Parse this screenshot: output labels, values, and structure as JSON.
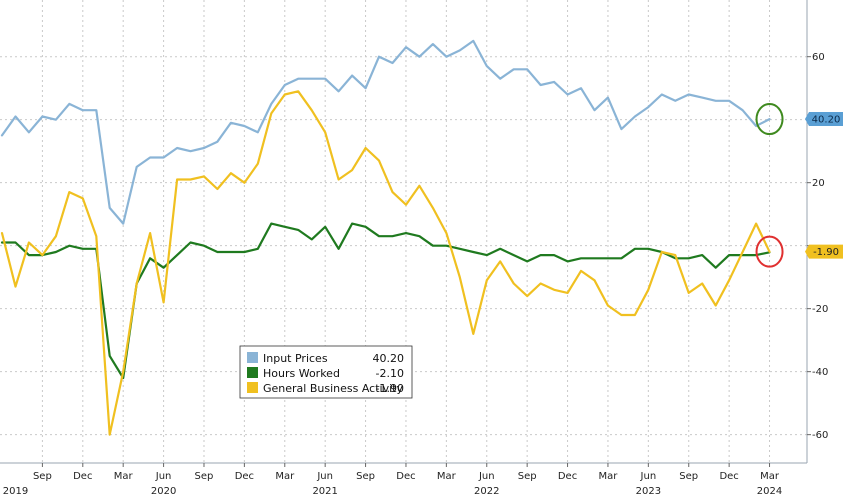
{
  "chart_data": {
    "type": "line",
    "x_start": "2019-06",
    "x_end": "2024-04",
    "x_ticks": [
      {
        "date": "2019-09",
        "label": "Sep"
      },
      {
        "date": "2019-12",
        "label": "Dec"
      },
      {
        "date": "2020-03",
        "label": "Mar"
      },
      {
        "date": "2020-06",
        "label": "Jun"
      },
      {
        "date": "2020-09",
        "label": "Sep"
      },
      {
        "date": "2020-12",
        "label": "Dec"
      },
      {
        "date": "2021-03",
        "label": "Mar"
      },
      {
        "date": "2021-06",
        "label": "Jun"
      },
      {
        "date": "2021-09",
        "label": "Sep"
      },
      {
        "date": "2021-12",
        "label": "Dec"
      },
      {
        "date": "2022-03",
        "label": "Mar"
      },
      {
        "date": "2022-06",
        "label": "Jun"
      },
      {
        "date": "2022-09",
        "label": "Sep"
      },
      {
        "date": "2022-12",
        "label": "Dec"
      },
      {
        "date": "2023-03",
        "label": "Mar"
      },
      {
        "date": "2023-06",
        "label": "Jun"
      },
      {
        "date": "2023-09",
        "label": "Sep"
      },
      {
        "date": "2023-12",
        "label": "Dec"
      },
      {
        "date": "2024-03",
        "label": "Mar"
      }
    ],
    "year_labels": [
      {
        "date": "2019-07",
        "label": "2019"
      },
      {
        "date": "2020-06",
        "label": "2020"
      },
      {
        "date": "2021-06",
        "label": "2021"
      },
      {
        "date": "2022-06",
        "label": "2022"
      },
      {
        "date": "2023-06",
        "label": "2023"
      },
      {
        "date": "2024-03",
        "label": "2024"
      }
    ],
    "ylim": [
      -69,
      78
    ],
    "y_ticks": [
      60,
      40,
      20,
      0,
      -20,
      -40,
      -60
    ],
    "y_tick_labels": [
      "60",
      "",
      "20",
      "",
      "-20",
      "-40",
      "-60"
    ],
    "grid": true,
    "legend_position": "bottom-center",
    "series": [
      {
        "name": "Input Prices",
        "color": "#8ab4d6",
        "last_value": "40.20",
        "last_label": "40.20",
        "label_bg": "#5a9fd4",
        "label_text_color": "#0b2a4a",
        "circle_color": "#3f8a1f",
        "points": [
          [
            "2019-06",
            35
          ],
          [
            "2019-07",
            41
          ],
          [
            "2019-08",
            36
          ],
          [
            "2019-09",
            41
          ],
          [
            "2019-10",
            40
          ],
          [
            "2019-11",
            45
          ],
          [
            "2019-12",
            43
          ],
          [
            "2020-01",
            43
          ],
          [
            "2020-02",
            12
          ],
          [
            "2020-03",
            7
          ],
          [
            "2020-04",
            25
          ],
          [
            "2020-05",
            28
          ],
          [
            "2020-06",
            28
          ],
          [
            "2020-07",
            31
          ],
          [
            "2020-08",
            30
          ],
          [
            "2020-09",
            31
          ],
          [
            "2020-10",
            33
          ],
          [
            "2020-11",
            39
          ],
          [
            "2020-12",
            38
          ],
          [
            "2021-01",
            36
          ],
          [
            "2021-02",
            45
          ],
          [
            "2021-03",
            51
          ],
          [
            "2021-04",
            53
          ],
          [
            "2021-05",
            53
          ],
          [
            "2021-06",
            53
          ],
          [
            "2021-07",
            49
          ],
          [
            "2021-08",
            54
          ],
          [
            "2021-09",
            50
          ],
          [
            "2021-10",
            60
          ],
          [
            "2021-11",
            58
          ],
          [
            "2021-12",
            63
          ],
          [
            "2022-01",
            60
          ],
          [
            "2022-02",
            64
          ],
          [
            "2022-03",
            60
          ],
          [
            "2022-04",
            62
          ],
          [
            "2022-05",
            65
          ],
          [
            "2022-06",
            57
          ],
          [
            "2022-07",
            53
          ],
          [
            "2022-08",
            56
          ],
          [
            "2022-09",
            56
          ],
          [
            "2022-10",
            51
          ],
          [
            "2022-11",
            52
          ],
          [
            "2022-12",
            48
          ],
          [
            "2023-01",
            50
          ],
          [
            "2023-02",
            43
          ],
          [
            "2023-03",
            47
          ],
          [
            "2023-04",
            37
          ],
          [
            "2023-05",
            41
          ],
          [
            "2023-06",
            44
          ],
          [
            "2023-07",
            48
          ],
          [
            "2023-08",
            46
          ],
          [
            "2023-09",
            48
          ],
          [
            "2023-10",
            47
          ],
          [
            "2023-11",
            46
          ],
          [
            "2023-12",
            46
          ],
          [
            "2024-01",
            43
          ],
          [
            "2024-02",
            38
          ],
          [
            "2024-03",
            40.2
          ]
        ]
      },
      {
        "name": "Hours Worked",
        "color": "#1f7a1f",
        "last_value": "-2.10",
        "points": [
          [
            "2019-06",
            1
          ],
          [
            "2019-07",
            1
          ],
          [
            "2019-08",
            -3
          ],
          [
            "2019-09",
            -3
          ],
          [
            "2019-10",
            -2
          ],
          [
            "2019-11",
            0
          ],
          [
            "2019-12",
            -1
          ],
          [
            "2020-01",
            -1
          ],
          [
            "2020-02",
            -35
          ],
          [
            "2020-03",
            -42
          ],
          [
            "2020-04",
            -12
          ],
          [
            "2020-05",
            -4
          ],
          [
            "2020-06",
            -7
          ],
          [
            "2020-07",
            -3
          ],
          [
            "2020-08",
            1
          ],
          [
            "2020-09",
            0
          ],
          [
            "2020-10",
            -2
          ],
          [
            "2020-11",
            -2
          ],
          [
            "2020-12",
            -2
          ],
          [
            "2021-01",
            -1
          ],
          [
            "2021-02",
            7
          ],
          [
            "2021-03",
            6
          ],
          [
            "2021-04",
            5
          ],
          [
            "2021-05",
            2
          ],
          [
            "2021-06",
            6
          ],
          [
            "2021-07",
            -1
          ],
          [
            "2021-08",
            7
          ],
          [
            "2021-09",
            6
          ],
          [
            "2021-10",
            3
          ],
          [
            "2021-11",
            3
          ],
          [
            "2021-12",
            4
          ],
          [
            "2022-01",
            3
          ],
          [
            "2022-02",
            0
          ],
          [
            "2022-03",
            0
          ],
          [
            "2022-04",
            -1
          ],
          [
            "2022-05",
            -2
          ],
          [
            "2022-06",
            -3
          ],
          [
            "2022-07",
            -1
          ],
          [
            "2022-08",
            -3
          ],
          [
            "2022-09",
            -5
          ],
          [
            "2022-10",
            -3
          ],
          [
            "2022-11",
            -3
          ],
          [
            "2022-12",
            -5
          ],
          [
            "2023-01",
            -4
          ],
          [
            "2023-02",
            -4
          ],
          [
            "2023-03",
            -4
          ],
          [
            "2023-04",
            -4
          ],
          [
            "2023-05",
            -1
          ],
          [
            "2023-06",
            -1
          ],
          [
            "2023-07",
            -2
          ],
          [
            "2023-08",
            -4
          ],
          [
            "2023-09",
            -4
          ],
          [
            "2023-10",
            -3
          ],
          [
            "2023-11",
            -7
          ],
          [
            "2023-12",
            -3
          ],
          [
            "2024-01",
            -3
          ],
          [
            "2024-02",
            -3
          ],
          [
            "2024-03",
            -2.1
          ]
        ]
      },
      {
        "name": "General Business Activity",
        "color": "#f0c020",
        "last_value": "-1.90",
        "last_label": "-1.90",
        "label_bg": "#f0c020",
        "label_text_color": "#222222",
        "circle_color": "#e03030",
        "points": [
          [
            "2019-06",
            4
          ],
          [
            "2019-07",
            -13
          ],
          [
            "2019-08",
            1
          ],
          [
            "2019-09",
            -3
          ],
          [
            "2019-10",
            3
          ],
          [
            "2019-11",
            17
          ],
          [
            "2019-12",
            15
          ],
          [
            "2020-01",
            3
          ],
          [
            "2020-02",
            -60
          ],
          [
            "2020-03",
            -40
          ],
          [
            "2020-04",
            -12
          ],
          [
            "2020-05",
            4
          ],
          [
            "2020-06",
            -18
          ],
          [
            "2020-07",
            21
          ],
          [
            "2020-08",
            21
          ],
          [
            "2020-09",
            22
          ],
          [
            "2020-10",
            18
          ],
          [
            "2020-11",
            23
          ],
          [
            "2020-12",
            20
          ],
          [
            "2021-01",
            26
          ],
          [
            "2021-02",
            42
          ],
          [
            "2021-03",
            48
          ],
          [
            "2021-04",
            49
          ],
          [
            "2021-05",
            43
          ],
          [
            "2021-06",
            36
          ],
          [
            "2021-07",
            21
          ],
          [
            "2021-08",
            24
          ],
          [
            "2021-09",
            31
          ],
          [
            "2021-10",
            27
          ],
          [
            "2021-11",
            17
          ],
          [
            "2021-12",
            13
          ],
          [
            "2022-01",
            19
          ],
          [
            "2022-02",
            12
          ],
          [
            "2022-03",
            4
          ],
          [
            "2022-04",
            -10
          ],
          [
            "2022-05",
            -28
          ],
          [
            "2022-06",
            -11
          ],
          [
            "2022-07",
            -5
          ],
          [
            "2022-08",
            -12
          ],
          [
            "2022-09",
            -16
          ],
          [
            "2022-10",
            -12
          ],
          [
            "2022-11",
            -14
          ],
          [
            "2022-12",
            -15
          ],
          [
            "2023-01",
            -8
          ],
          [
            "2023-02",
            -11
          ],
          [
            "2023-03",
            -19
          ],
          [
            "2023-04",
            -22
          ],
          [
            "2023-05",
            -22
          ],
          [
            "2023-06",
            -14
          ],
          [
            "2023-07",
            -2
          ],
          [
            "2023-08",
            -3
          ],
          [
            "2023-09",
            -15
          ],
          [
            "2023-10",
            -12
          ],
          [
            "2023-11",
            -19
          ],
          [
            "2023-12",
            -11
          ],
          [
            "2024-01",
            -2
          ],
          [
            "2024-02",
            7
          ],
          [
            "2024-03",
            -1.9
          ]
        ]
      }
    ]
  }
}
